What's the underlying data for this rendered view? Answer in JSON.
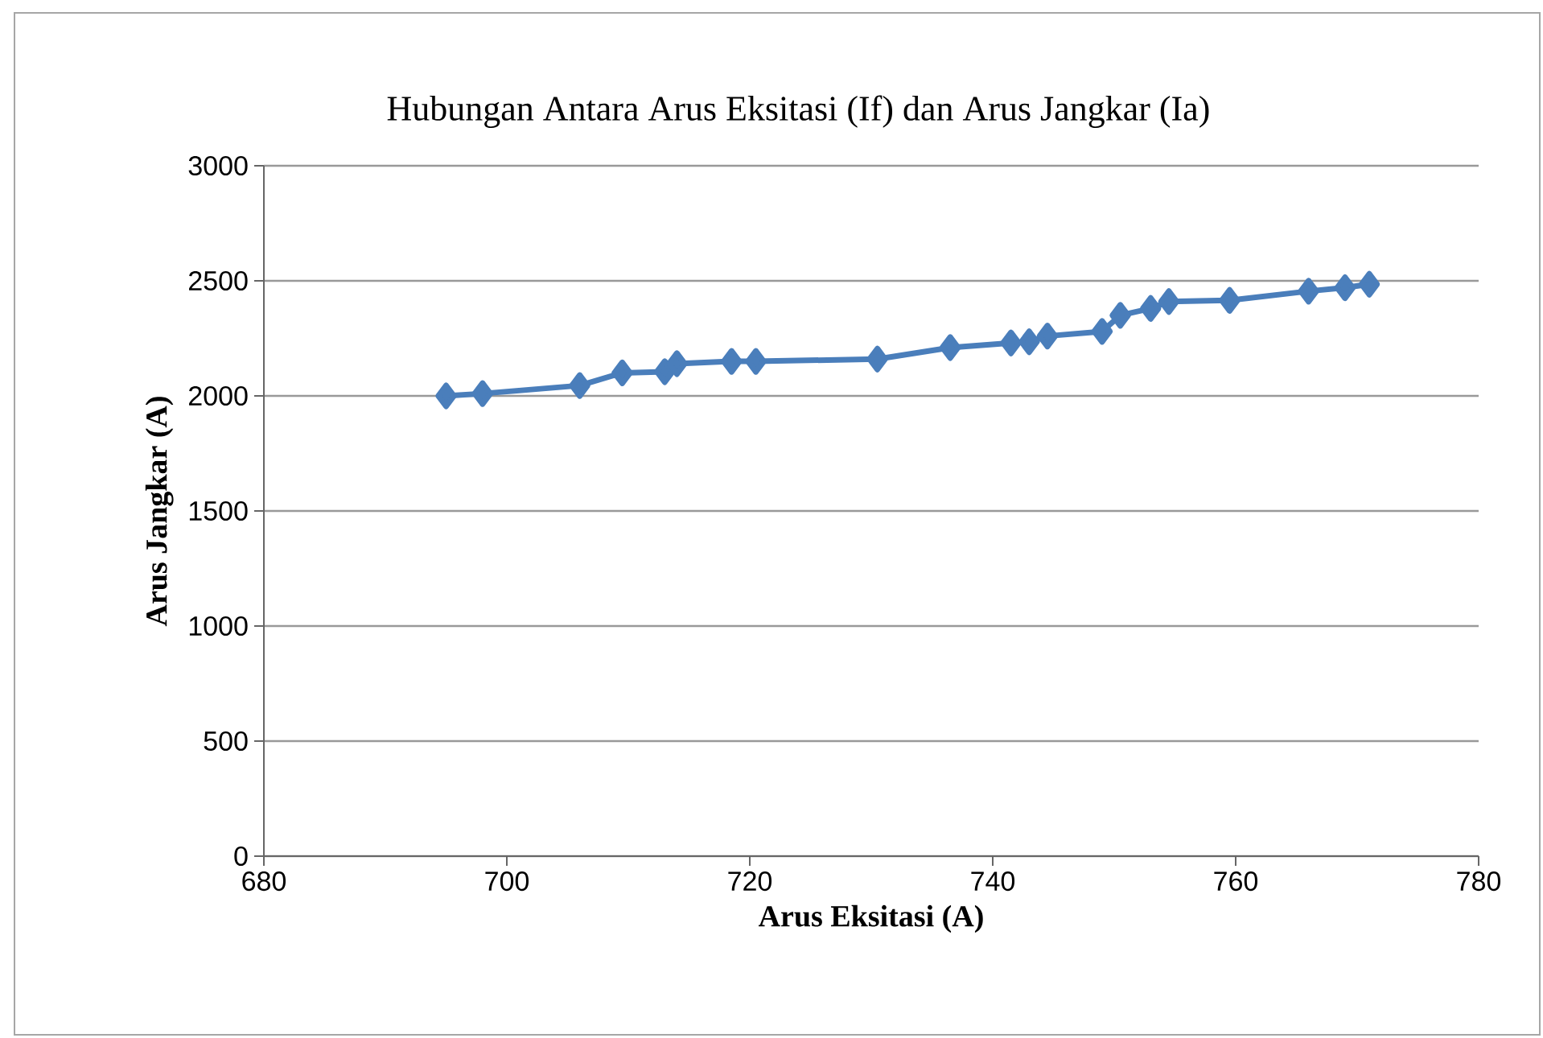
{
  "chart_data": {
    "type": "line",
    "title": "Hubungan Antara Arus Eksitasi (If) dan Arus Jangkar (Ia)",
    "xlabel": "Arus Eksitasi (A)",
    "ylabel": "Arus Jangkar (A)",
    "series": [
      {
        "color": "#4a7ebb",
        "x": [
          695,
          698,
          706,
          709.5,
          713,
          714,
          718.5,
          720.5,
          730.5,
          736.5,
          741.5,
          743,
          744.5,
          749,
          750.5,
          753,
          754.5,
          759.5,
          766,
          769,
          771
        ],
        "values": [
          2000,
          2010,
          2045,
          2100,
          2105,
          2140,
          2150,
          2150,
          2160,
          2210,
          2230,
          2235,
          2260,
          2280,
          2350,
          2380,
          2410,
          2415,
          2455,
          2470,
          2485
        ]
      }
    ],
    "xlim": [
      680,
      780
    ],
    "xticks": [
      680,
      700,
      720,
      740,
      760,
      780
    ],
    "ylim": [
      0,
      3000
    ],
    "yticks": [
      0,
      500,
      1000,
      1500,
      2000,
      2500,
      3000
    ],
    "grid": "y",
    "marker": "diamond",
    "line_style": "solid"
  }
}
